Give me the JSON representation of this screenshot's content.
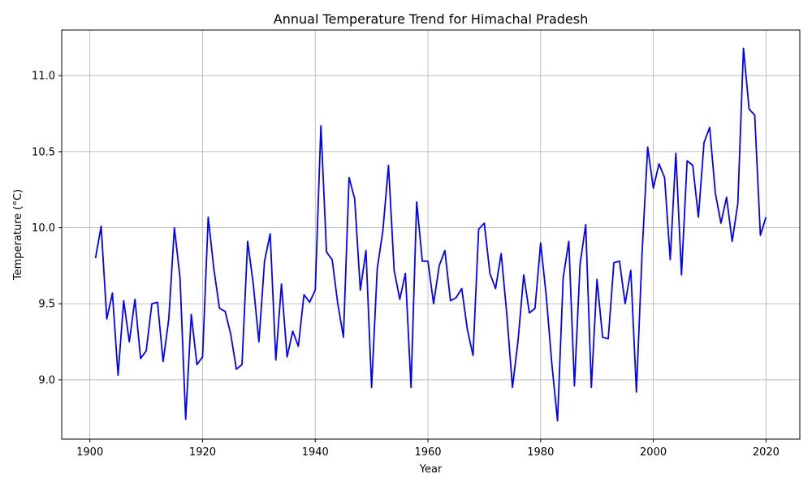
{
  "chart_data": {
    "type": "line",
    "title": "Annual Temperature Trend for Himachal Pradesh",
    "xlabel": "Year",
    "ylabel": "Temperature (°C)",
    "xlim": [
      1895,
      2026
    ],
    "ylim": [
      8.61,
      11.3
    ],
    "xticks": [
      1900,
      1920,
      1940,
      1960,
      1980,
      2000,
      2020
    ],
    "yticks": [
      9.0,
      9.5,
      10.0,
      10.5,
      11.0
    ],
    "xtick_labels": [
      "1900",
      "1920",
      "1940",
      "1960",
      "1980",
      "2000",
      "2020"
    ],
    "ytick_labels": [
      "9.0",
      "9.5",
      "10.0",
      "10.5",
      "11.0"
    ],
    "grid": true,
    "color": "#0000ff",
    "series": [
      {
        "x": [
          1901,
          1902,
          1903,
          1904,
          1905,
          1906,
          1907,
          1908,
          1909,
          1910,
          1911,
          1912,
          1913,
          1914,
          1915,
          1916,
          1917,
          1918,
          1919,
          1920,
          1921,
          1922,
          1923,
          1924,
          1925,
          1926,
          1927,
          1928,
          1929,
          1930,
          1931,
          1932,
          1933,
          1934,
          1935,
          1936,
          1937,
          1938,
          1939,
          1940,
          1941,
          1942,
          1943,
          1944,
          1945,
          1946,
          1947,
          1948,
          1949,
          1950,
          1951,
          1952,
          1953,
          1954,
          1955,
          1956,
          1957,
          1958,
          1959,
          1960,
          1961,
          1962,
          1963,
          1964,
          1965,
          1966,
          1967,
          1968,
          1969,
          1970,
          1971,
          1972,
          1973,
          1974,
          1975,
          1976,
          1977,
          1978,
          1979,
          1980,
          1981,
          1982,
          1983,
          1984,
          1985,
          1986,
          1987,
          1988,
          1989,
          1990,
          1991,
          1992,
          1993,
          1994,
          1995,
          1996,
          1997,
          1998,
          1999,
          2000,
          2001,
          2002,
          2003,
          2004,
          2005,
          2006,
          2007,
          2008,
          2009,
          2010,
          2011,
          2012,
          2013,
          2014,
          2015,
          2016,
          2017,
          2018,
          2019,
          2020
        ],
        "y": [
          9.8,
          10.01,
          9.4,
          9.57,
          9.03,
          9.52,
          9.25,
          9.53,
          9.14,
          9.19,
          9.5,
          9.51,
          9.12,
          9.4,
          10.0,
          9.67,
          8.74,
          9.43,
          9.1,
          9.15,
          10.07,
          9.73,
          9.47,
          9.45,
          9.3,
          9.07,
          9.1,
          9.91,
          9.63,
          9.25,
          9.78,
          9.96,
          9.13,
          9.63,
          9.15,
          9.32,
          9.22,
          9.56,
          9.51,
          9.59,
          10.67,
          9.84,
          9.79,
          9.5,
          9.28,
          10.33,
          10.19,
          9.59,
          9.85,
          8.95,
          9.73,
          9.98,
          10.41,
          9.72,
          9.53,
          9.7,
          8.95,
          10.17,
          9.78,
          9.78,
          9.5,
          9.75,
          9.85,
          9.52,
          9.54,
          9.6,
          9.33,
          9.16,
          9.99,
          10.03,
          9.7,
          9.6,
          9.83,
          9.43,
          8.95,
          9.26,
          9.69,
          9.44,
          9.47,
          9.9,
          9.55,
          9.1,
          8.73,
          9.67,
          9.91,
          8.96,
          9.76,
          10.02,
          8.95,
          9.66,
          9.28,
          9.27,
          9.77,
          9.78,
          9.5,
          9.72,
          8.92,
          9.83,
          10.53,
          10.26,
          10.42,
          10.33,
          9.79,
          10.49,
          9.69,
          10.44,
          10.41,
          10.07,
          10.56,
          10.66,
          10.23,
          10.03,
          10.2,
          9.91,
          10.16,
          11.18,
          10.78,
          10.74,
          9.95,
          10.07
        ]
      }
    ]
  }
}
